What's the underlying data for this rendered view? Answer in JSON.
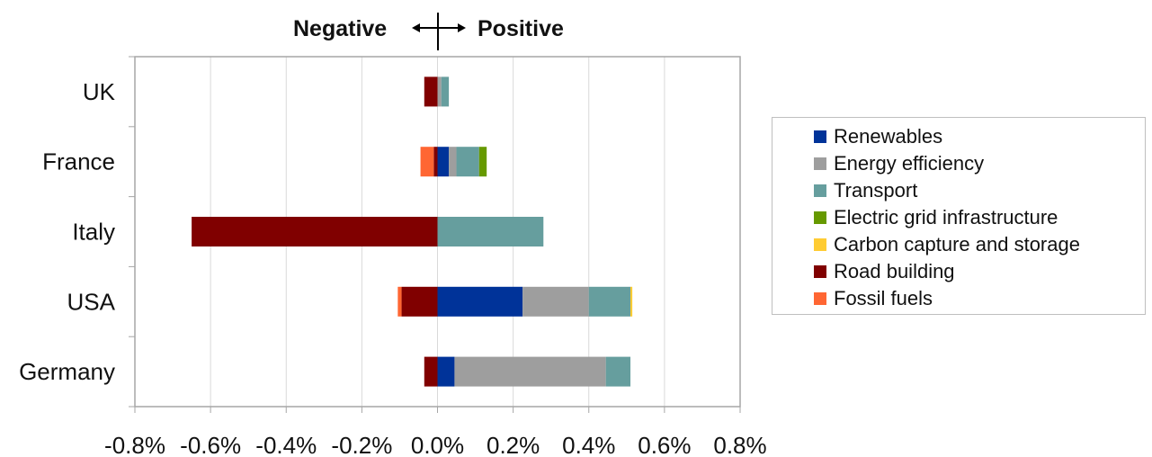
{
  "header": {
    "negative_label": "Negative",
    "positive_label": "Positive"
  },
  "chart_data": {
    "type": "bar",
    "orientation": "horizontal",
    "stacked": true,
    "categories": [
      "UK",
      "France",
      "Italy",
      "USA",
      "Germany"
    ],
    "xlim": [
      -0.8,
      0.8
    ],
    "xticks": [
      "-0.8%",
      "-0.6%",
      "-0.4%",
      "-0.2%",
      "0.0%",
      "0.2%",
      "0.4%",
      "0.6%",
      "0.8%"
    ],
    "grid": true,
    "legend_position": "right",
    "series": [
      {
        "name": "Renewables",
        "color": "#003399",
        "values": [
          0.0,
          0.03,
          0.0,
          0.225,
          0.045
        ]
      },
      {
        "name": "Energy efficiency",
        "color": "#9e9e9e",
        "values": [
          0.01,
          0.02,
          0.0,
          0.175,
          0.4
        ]
      },
      {
        "name": "Transport",
        "color": "#669e9e",
        "values": [
          0.02,
          0.06,
          0.28,
          0.11,
          0.065
        ]
      },
      {
        "name": "Electric grid infrastructure",
        "color": "#669900",
        "values": [
          0.0,
          0.02,
          0.0,
          0.0,
          0.0
        ]
      },
      {
        "name": "Carbon capture and storage",
        "color": "#ffcc33",
        "values": [
          0.0,
          0.0,
          0.0,
          0.005,
          0.0
        ]
      },
      {
        "name": "Road building",
        "color": "#800000",
        "values": [
          -0.035,
          -0.01,
          -0.65,
          -0.095,
          -0.035
        ]
      },
      {
        "name": "Fossil fuels",
        "color": "#ff6633",
        "values": [
          0.0,
          -0.035,
          0.0,
          -0.01,
          0.0
        ]
      }
    ]
  }
}
